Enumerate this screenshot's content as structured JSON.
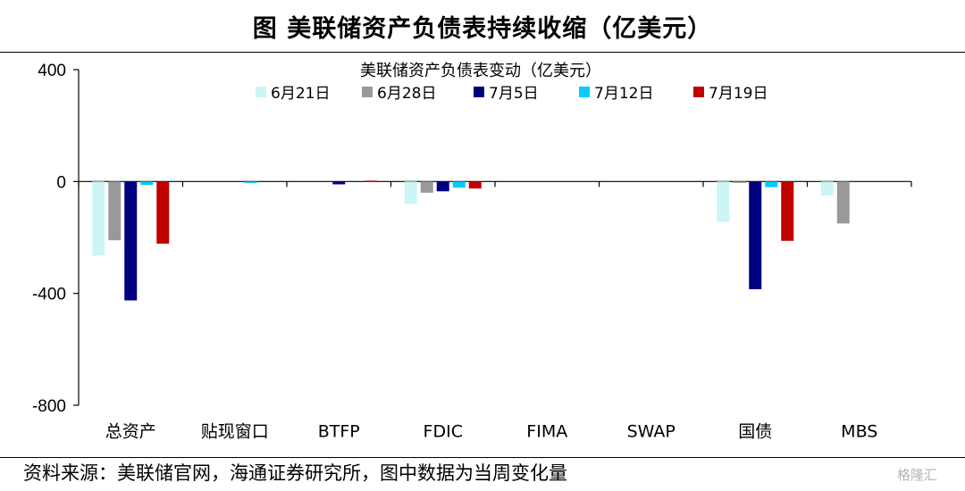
{
  "header": {
    "title": "图  美联储资产负债表持续收缩（亿美元）"
  },
  "footer": {
    "source": "资料来源：美联储官网，海通证券研究所，图中数据为当周变化量",
    "watermark": "格隆汇"
  },
  "chart_data": {
    "type": "bar",
    "title": "美联储资产负债表变动（亿美元）",
    "xlabel": "",
    "ylabel": "",
    "ylim": [
      -800,
      400
    ],
    "yticks": [
      400,
      0,
      -400,
      -800
    ],
    "grid": false,
    "legend_position": "top-center",
    "categories": [
      "总资产",
      "贴现窗口",
      "BTFP",
      "FDIC",
      "FIMA",
      "SWAP",
      "国债",
      "MBS"
    ],
    "series": [
      {
        "name": "6月21日",
        "color": "#ccf5f5",
        "values": [
          -265,
          0,
          0,
          -80,
          0,
          0,
          -145,
          -50
        ]
      },
      {
        "name": "6月28日",
        "color": "#999999",
        "values": [
          -210,
          0,
          0,
          -40,
          0,
          0,
          -5,
          -150
        ]
      },
      {
        "name": "7月5日",
        "color": "#000080",
        "values": [
          -425,
          0,
          -10,
          -35,
          0,
          0,
          -385,
          0
        ]
      },
      {
        "name": "7月12日",
        "color": "#00ccff",
        "values": [
          -12,
          -5,
          0,
          -22,
          0,
          0,
          -20,
          0
        ]
      },
      {
        "name": "7月19日",
        "color": "#c00000",
        "values": [
          -222,
          0,
          3,
          -25,
          0,
          0,
          -212,
          0
        ]
      }
    ]
  }
}
